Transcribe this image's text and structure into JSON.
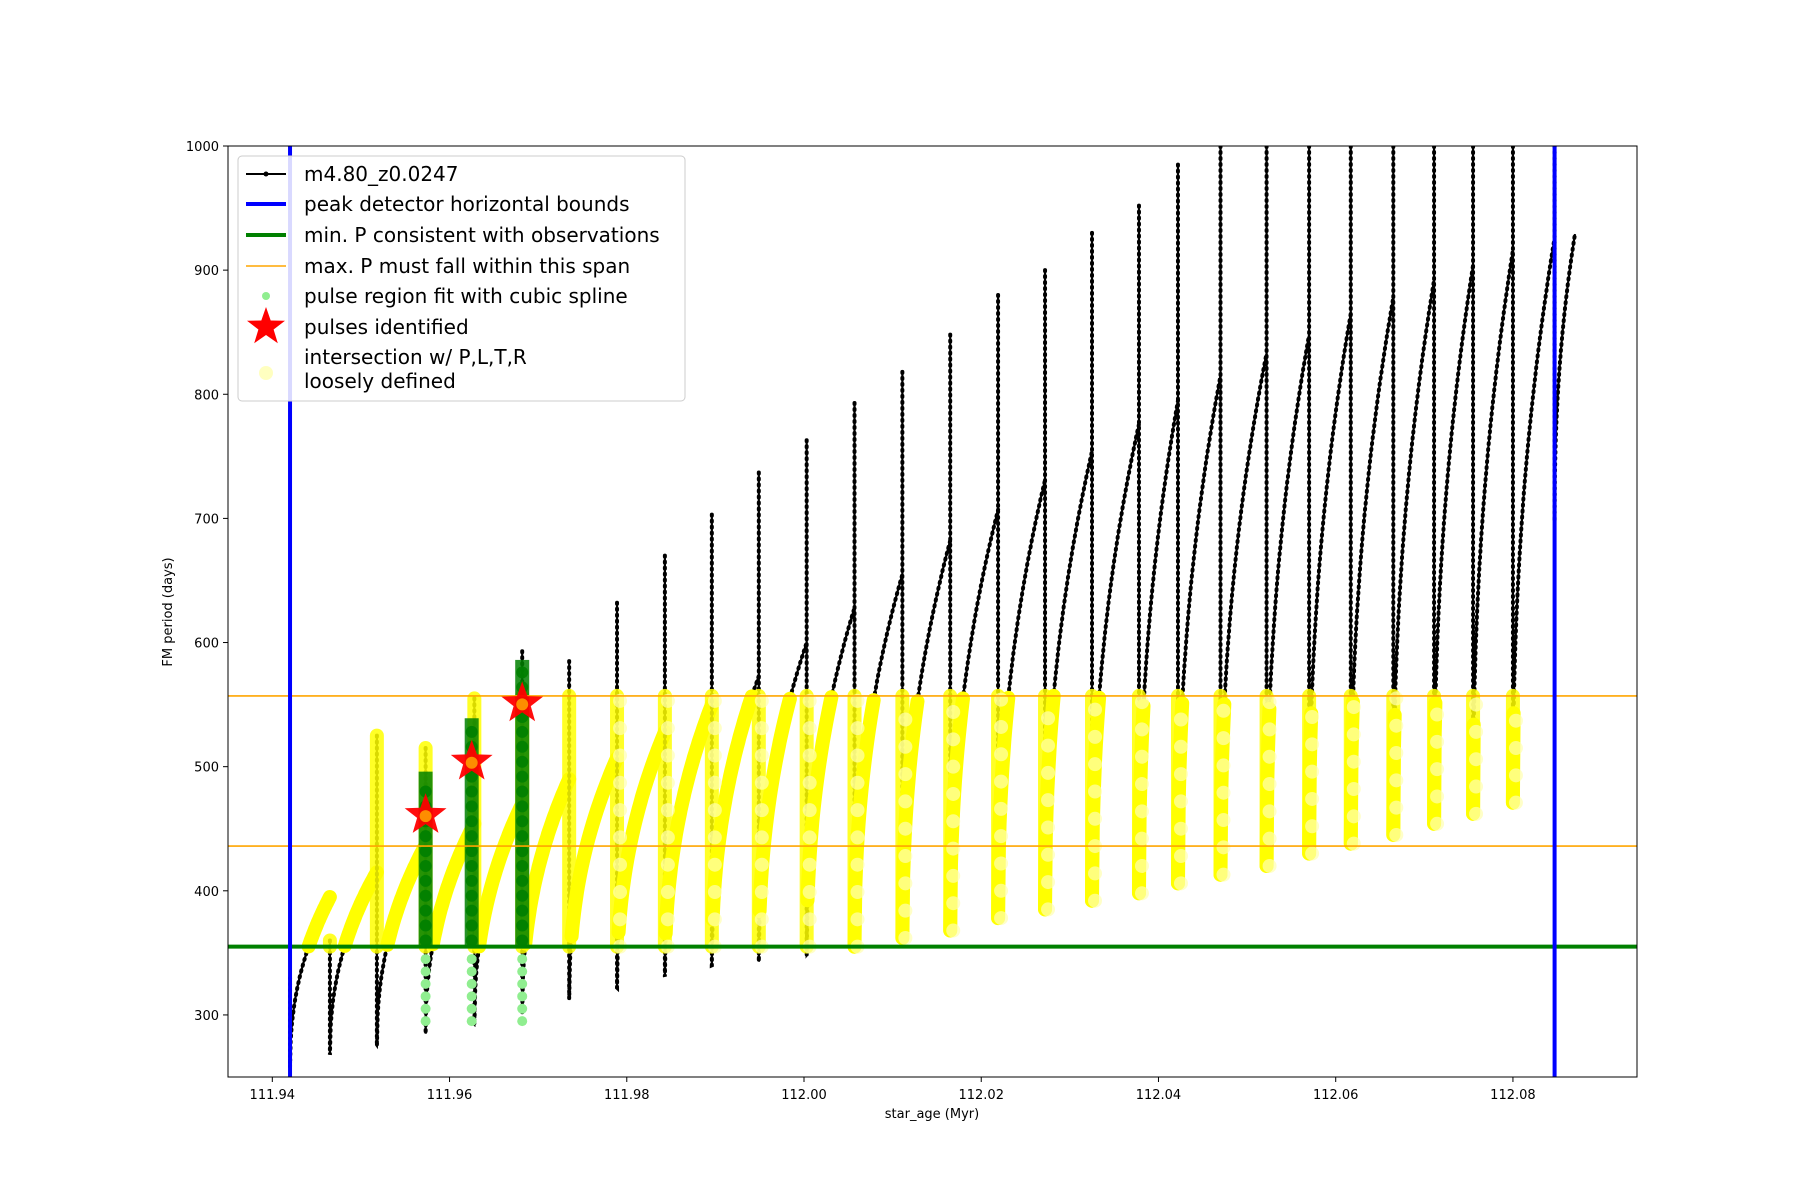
{
  "chart_data": {
    "type": "line",
    "title": "",
    "xlabel": "star_age (Myr)",
    "ylabel": "FM period (days)",
    "xlim": [
      111.935,
      112.094
    ],
    "ylim": [
      250,
      1000
    ],
    "xticks": [
      111.94,
      111.96,
      111.98,
      112.0,
      112.02,
      112.04,
      112.06,
      112.08
    ],
    "xtick_labels": [
      "111.94",
      "111.96",
      "111.98",
      "112.00",
      "112.02",
      "112.04",
      "112.06",
      "112.08"
    ],
    "yticks": [
      300,
      400,
      500,
      600,
      700,
      800,
      900,
      1000
    ],
    "ytick_labels": [
      "300",
      "400",
      "500",
      "600",
      "700",
      "800",
      "900",
      "1000"
    ],
    "grid": false,
    "legend_position": "upper-left",
    "colors": {
      "track": "#000000",
      "bounds": "#0000ff",
      "min_period": "#008000",
      "max_period_span": "#ffa500",
      "spline_fit": "#90ee90",
      "pulses": "#ff0000",
      "intersection": "#ffff00",
      "loosely_defined": "#ffffb0"
    },
    "legend": [
      {
        "key": "track",
        "label": "m4.80_z0.0247",
        "style": "line-marker"
      },
      {
        "key": "bounds",
        "label": "peak detector horizontal bounds",
        "style": "thick-line"
      },
      {
        "key": "min_period",
        "label": "min. P consistent with observations",
        "style": "thick-line"
      },
      {
        "key": "max_period_span",
        "label": "max. P must fall within this span",
        "style": "thin-line"
      },
      {
        "key": "spline_fit",
        "label": "pulse region fit with cubic spline",
        "style": "dot"
      },
      {
        "key": "pulses",
        "label": "pulses identified",
        "style": "star"
      },
      {
        "key": "intersection",
        "label": "intersection w/ P,L,T,R",
        "style": "none"
      },
      {
        "key": "loosely_defined",
        "label": "loosely defined",
        "style": "big-dot"
      }
    ],
    "vertical_bounds_x": [
      111.942,
      112.0847
    ],
    "min_period_y": 355,
    "max_period_span_y": [
      436,
      557
    ],
    "pulses": [
      {
        "x": 111.9573,
        "y": 461
      },
      {
        "x": 111.9625,
        "y": 504
      },
      {
        "x": 111.9682,
        "y": 551
      }
    ],
    "pulse_cycles": [
      {
        "start": 111.942,
        "end": 111.9465,
        "trough": 258,
        "peak": 395,
        "spike": 330
      },
      {
        "start": 111.9465,
        "end": 111.9518,
        "trough": 268,
        "peak": 415,
        "spike": 360
      },
      {
        "start": 111.9518,
        "end": 111.9573,
        "trough": 275,
        "peak": 437,
        "spike": 525
      },
      {
        "start": 111.9573,
        "end": 111.9628,
        "trough": 285,
        "peak": 454,
        "spike": 515
      },
      {
        "start": 111.9628,
        "end": 111.9682,
        "trough": 292,
        "peak": 470,
        "spike": 555
      },
      {
        "start": 111.9682,
        "end": 111.9735,
        "trough": 302,
        "peak": 490,
        "spike": 593
      },
      {
        "start": 111.9735,
        "end": 111.9789,
        "trough": 313,
        "peak": 507,
        "spike": 585
      },
      {
        "start": 111.9789,
        "end": 111.9843,
        "trough": 322,
        "peak": 528,
        "spike": 632
      },
      {
        "start": 111.9843,
        "end": 111.9896,
        "trough": 331,
        "peak": 550,
        "spike": 670
      },
      {
        "start": 111.9896,
        "end": 111.9949,
        "trough": 340,
        "peak": 573,
        "spike": 703
      },
      {
        "start": 111.9949,
        "end": 112.0003,
        "trough": 343,
        "peak": 600,
        "spike": 737
      },
      {
        "start": 112.0003,
        "end": 112.0057,
        "trough": 348,
        "peak": 628,
        "spike": 763
      },
      {
        "start": 112.0057,
        "end": 112.0111,
        "trough": 355,
        "peak": 655,
        "spike": 793
      },
      {
        "start": 112.0111,
        "end": 112.0165,
        "trough": 362,
        "peak": 682,
        "spike": 818
      },
      {
        "start": 112.0165,
        "end": 112.0219,
        "trough": 368,
        "peak": 707,
        "spike": 848
      },
      {
        "start": 112.0219,
        "end": 112.0272,
        "trough": 378,
        "peak": 731,
        "spike": 880
      },
      {
        "start": 112.0272,
        "end": 112.0325,
        "trough": 385,
        "peak": 754,
        "spike": 900
      },
      {
        "start": 112.0325,
        "end": 112.0378,
        "trough": 392,
        "peak": 776,
        "spike": 930
      },
      {
        "start": 112.0378,
        "end": 112.0422,
        "trough": 398,
        "peak": 795,
        "spike": 952
      },
      {
        "start": 112.0422,
        "end": 112.047,
        "trough": 406,
        "peak": 815,
        "spike": 985
      },
      {
        "start": 112.047,
        "end": 112.0522,
        "trough": 413,
        "peak": 833,
        "spike": 1000
      },
      {
        "start": 112.0522,
        "end": 112.057,
        "trough": 420,
        "peak": 848,
        "spike": 1000
      },
      {
        "start": 112.057,
        "end": 112.0617,
        "trough": 430,
        "peak": 865,
        "spike": 1000
      },
      {
        "start": 112.0617,
        "end": 112.0665,
        "trough": 438,
        "peak": 878,
        "spike": 1000
      },
      {
        "start": 112.0665,
        "end": 112.0711,
        "trough": 445,
        "peak": 892,
        "spike": 1000
      },
      {
        "start": 112.0711,
        "end": 112.0755,
        "trough": 454,
        "peak": 904,
        "spike": 1000
      },
      {
        "start": 112.0755,
        "end": 112.08,
        "trough": 462,
        "peak": 916,
        "spike": 1000
      },
      {
        "start": 112.08,
        "end": 112.0847,
        "trough": 471,
        "peak": 926,
        "spike": 1000
      },
      {
        "start": 112.0847,
        "end": 112.087,
        "trough": 700,
        "peak": 929,
        "spike": 1000
      }
    ]
  }
}
